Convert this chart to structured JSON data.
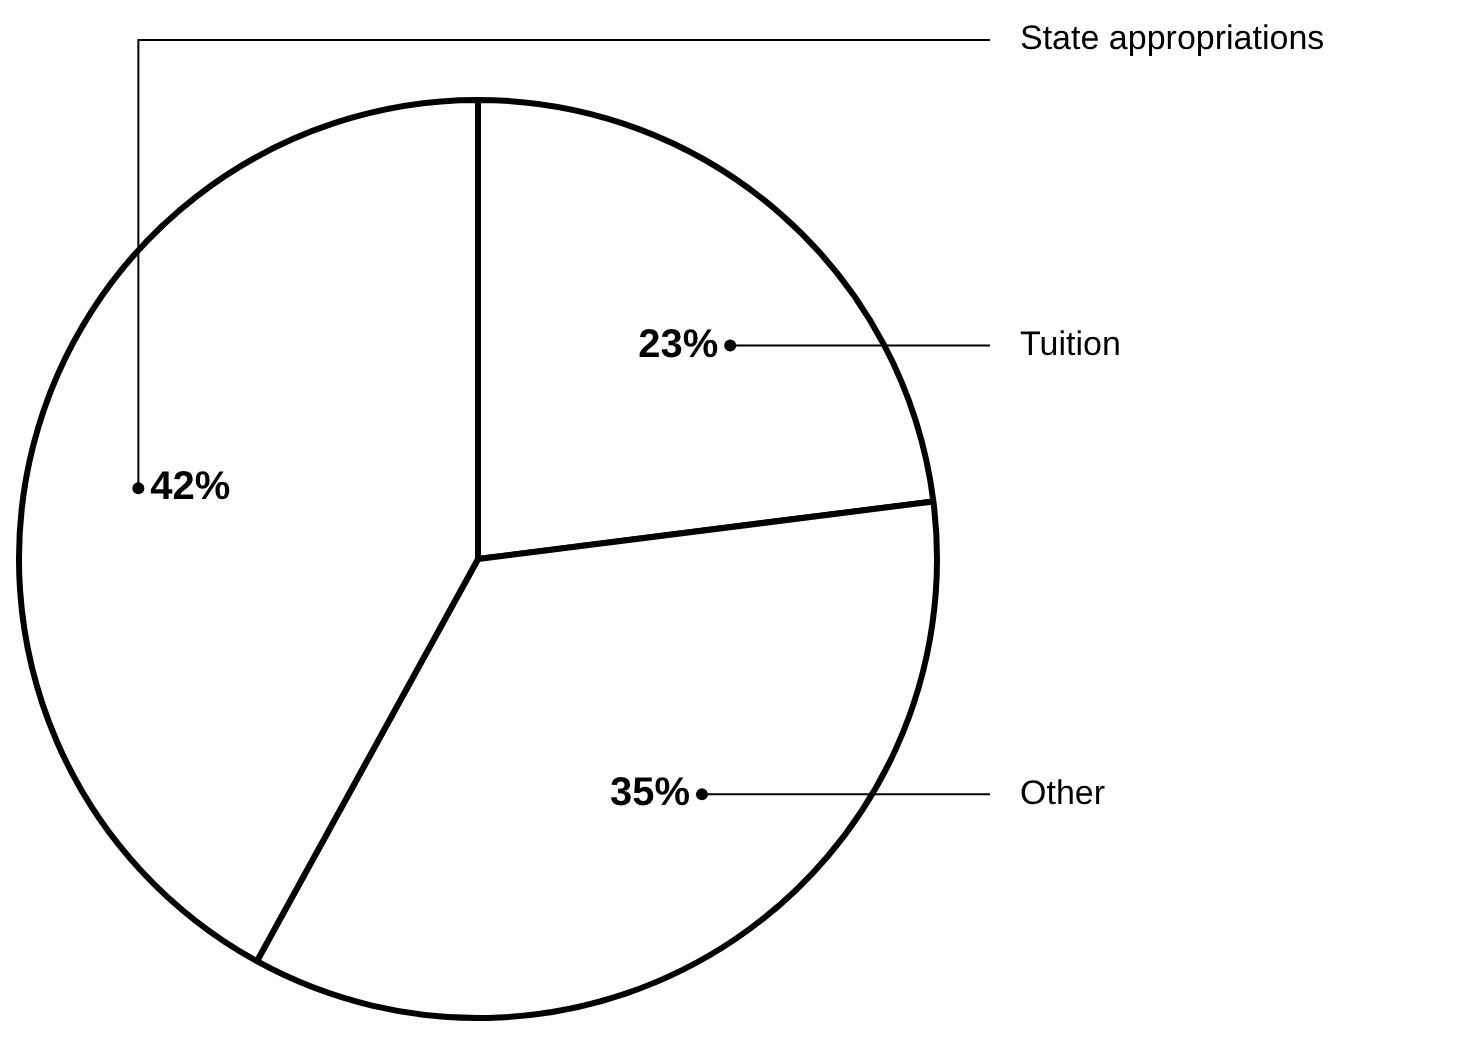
{
  "chart_data": {
    "type": "pie",
    "categories": [
      "Tuition",
      "Other",
      "State appropriations"
    ],
    "values": [
      23,
      35,
      42
    ],
    "value_labels": [
      "23%",
      "35%",
      "42%"
    ],
    "colors": [
      "#ffffff",
      "#ffffff",
      "#ffffff"
    ],
    "legend": false
  }
}
